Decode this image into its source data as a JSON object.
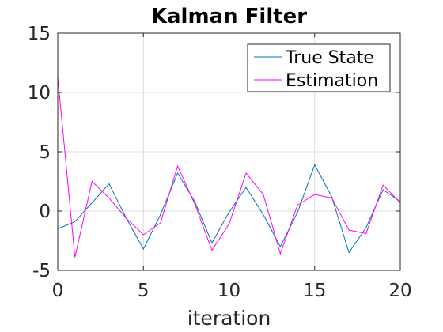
{
  "chart_data": {
    "type": "line",
    "title": "Kalman Filter",
    "xlabel": "iteration",
    "ylabel": "",
    "xlim": [
      0,
      20
    ],
    "ylim": [
      -5,
      15
    ],
    "xticks": [
      0,
      5,
      10,
      15,
      20
    ],
    "yticks": [
      -5,
      0,
      5,
      10,
      15
    ],
    "xtick_labels": [
      "0",
      "5",
      "10",
      "15",
      "20"
    ],
    "ytick_labels": [
      "-5",
      "0",
      "5",
      "10",
      "15"
    ],
    "grid": true,
    "legend_position": "top-right",
    "x": [
      0,
      1,
      2,
      3,
      4,
      5,
      6,
      7,
      8,
      9,
      10,
      11,
      12,
      13,
      14,
      15,
      16,
      17,
      18,
      19,
      20
    ],
    "series": [
      {
        "name": "True State",
        "color": "#0072BD",
        "values": [
          -1.5,
          -0.9,
          0.7,
          2.3,
          -0.6,
          -3.2,
          -0.3,
          3.2,
          0.8,
          -2.7,
          -0.1,
          2.0,
          -0.3,
          -3.0,
          -0.1,
          3.9,
          1.2,
          -3.5,
          -1.4,
          1.8,
          0.8
        ]
      },
      {
        "name": "Estimation",
        "color": "#FF00FF",
        "values": [
          11.3,
          -3.9,
          2.5,
          1.1,
          -0.6,
          -2.0,
          -1.0,
          3.8,
          0.6,
          -3.3,
          -1.1,
          3.2,
          1.4,
          -3.6,
          0.5,
          1.4,
          1.1,
          -1.6,
          -1.9,
          2.2,
          0.7
        ]
      }
    ]
  }
}
